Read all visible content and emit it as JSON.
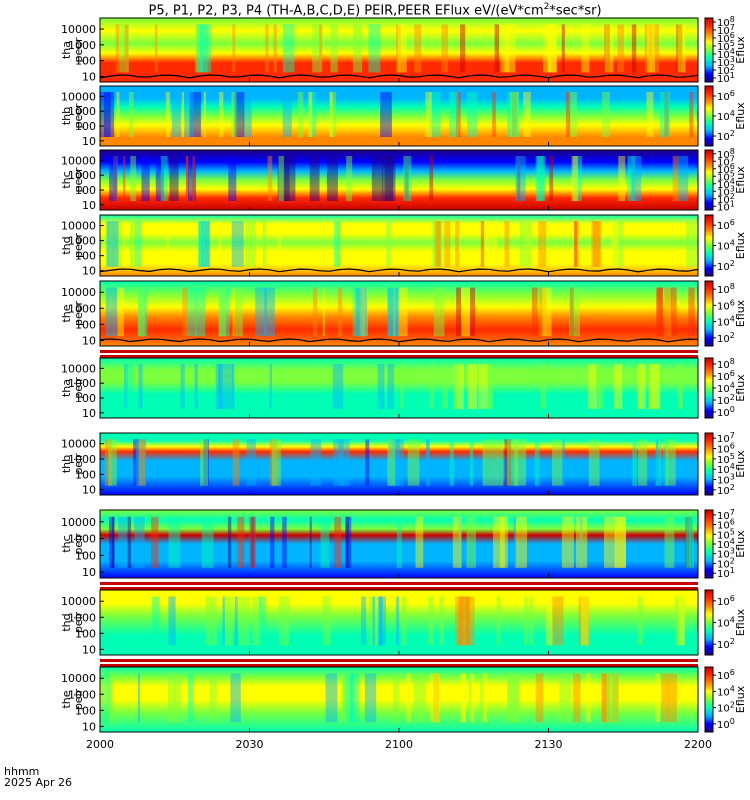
{
  "title": {
    "prefix": "P5, P1, P2, P3, P4 (TH-A,B,C,D,E) PEIR,PEER EFlux eV/(eV*cm",
    "superscript": "2",
    "suffix": "*sec*sr)"
  },
  "footer": {
    "line1": "hhmm",
    "line2": "2025 Apr 26"
  },
  "colors": {
    "frame": "#000000",
    "background": "#ffffff",
    "potential_line": "#000000"
  },
  "chart_data": {
    "type": "heatmap",
    "grid": false,
    "x_tick_labels": [
      "2000",
      "2030",
      "2100",
      "2130",
      "2200"
    ],
    "y_scale": "log",
    "colorbar_quantity": "Eflux",
    "colormap": [
      "#1e0082",
      "#0000ff",
      "#00b4ff",
      "#00ffb4",
      "#7bff3c",
      "#ffff00",
      "#ff8800",
      "#ff2a00",
      "#c80000"
    ],
    "panels": [
      {
        "label": [
          "tha",
          "peer"
        ],
        "y_ticks": [
          "10",
          "100",
          "1000",
          "10000"
        ],
        "cb_ticks": [
          "10^1",
          "10^2",
          "10^3",
          "10^4",
          "10^5",
          "10^6",
          "10^7",
          "10^8"
        ],
        "has_potential_line": true,
        "gap_stripes": false
      },
      {
        "label": [
          "thb",
          "peer"
        ],
        "y_ticks": [
          "10",
          "100",
          "1000",
          "10000"
        ],
        "cb_ticks": [
          "10^2",
          "10^4",
          "10^6"
        ],
        "has_potential_line": false,
        "gap_stripes": false
      },
      {
        "label": [
          "thc",
          "peer"
        ],
        "y_ticks": [
          "10",
          "100",
          "1000",
          "10000"
        ],
        "cb_ticks": [
          "10^1",
          "10^2",
          "10^3",
          "10^4",
          "10^5",
          "10^6",
          "10^7",
          "10^8"
        ],
        "has_potential_line": false,
        "gap_stripes": false
      },
      {
        "label": [
          "thd",
          "peer"
        ],
        "y_ticks": [
          "10",
          "100",
          "1000",
          "10000"
        ],
        "cb_ticks": [
          "10^2",
          "10^4",
          "10^6"
        ],
        "has_potential_line": true,
        "gap_stripes": false
      },
      {
        "label": [
          "the",
          "peer"
        ],
        "y_ticks": [
          "10",
          "100",
          "1000",
          "10000"
        ],
        "cb_ticks": [
          "10^2",
          "10^4",
          "10^6",
          "10^8"
        ],
        "has_potential_line": true,
        "gap_stripes": false
      },
      {
        "label": [
          "tha",
          "peir"
        ],
        "y_ticks": [
          "10",
          "100",
          "1000",
          "10000"
        ],
        "cb_ticks": [
          "10^0",
          "10^2",
          "10^4",
          "10^6",
          "10^8"
        ],
        "has_potential_line": false,
        "gap_stripes": true
      },
      {
        "label": [
          "thb",
          "peir"
        ],
        "y_ticks": [
          "10",
          "100",
          "1000",
          "10000"
        ],
        "cb_ticks": [
          "10^2",
          "10^3",
          "10^4",
          "10^5",
          "10^6",
          "10^7"
        ],
        "has_potential_line": false,
        "gap_stripes": false
      },
      {
        "label": [
          "thc",
          "peir"
        ],
        "y_ticks": [
          "10",
          "100",
          "1000",
          "10000"
        ],
        "cb_ticks": [
          "10^1",
          "10^2",
          "10^3",
          "10^4",
          "10^5",
          "10^6",
          "10^7"
        ],
        "has_potential_line": false,
        "gap_stripes": false
      },
      {
        "label": [
          "thd",
          "peir"
        ],
        "y_ticks": [
          "10",
          "100",
          "1000",
          "10000"
        ],
        "cb_ticks": [
          "10^2",
          "10^4",
          "10^6"
        ],
        "has_potential_line": false,
        "gap_stripes": true
      },
      {
        "label": [
          "the",
          "peir"
        ],
        "y_ticks": [
          "10",
          "100",
          "1000",
          "10000"
        ],
        "cb_ticks": [
          "10^0",
          "10^2",
          "10^4",
          "10^6"
        ],
        "has_potential_line": false,
        "gap_stripes": true
      }
    ]
  }
}
